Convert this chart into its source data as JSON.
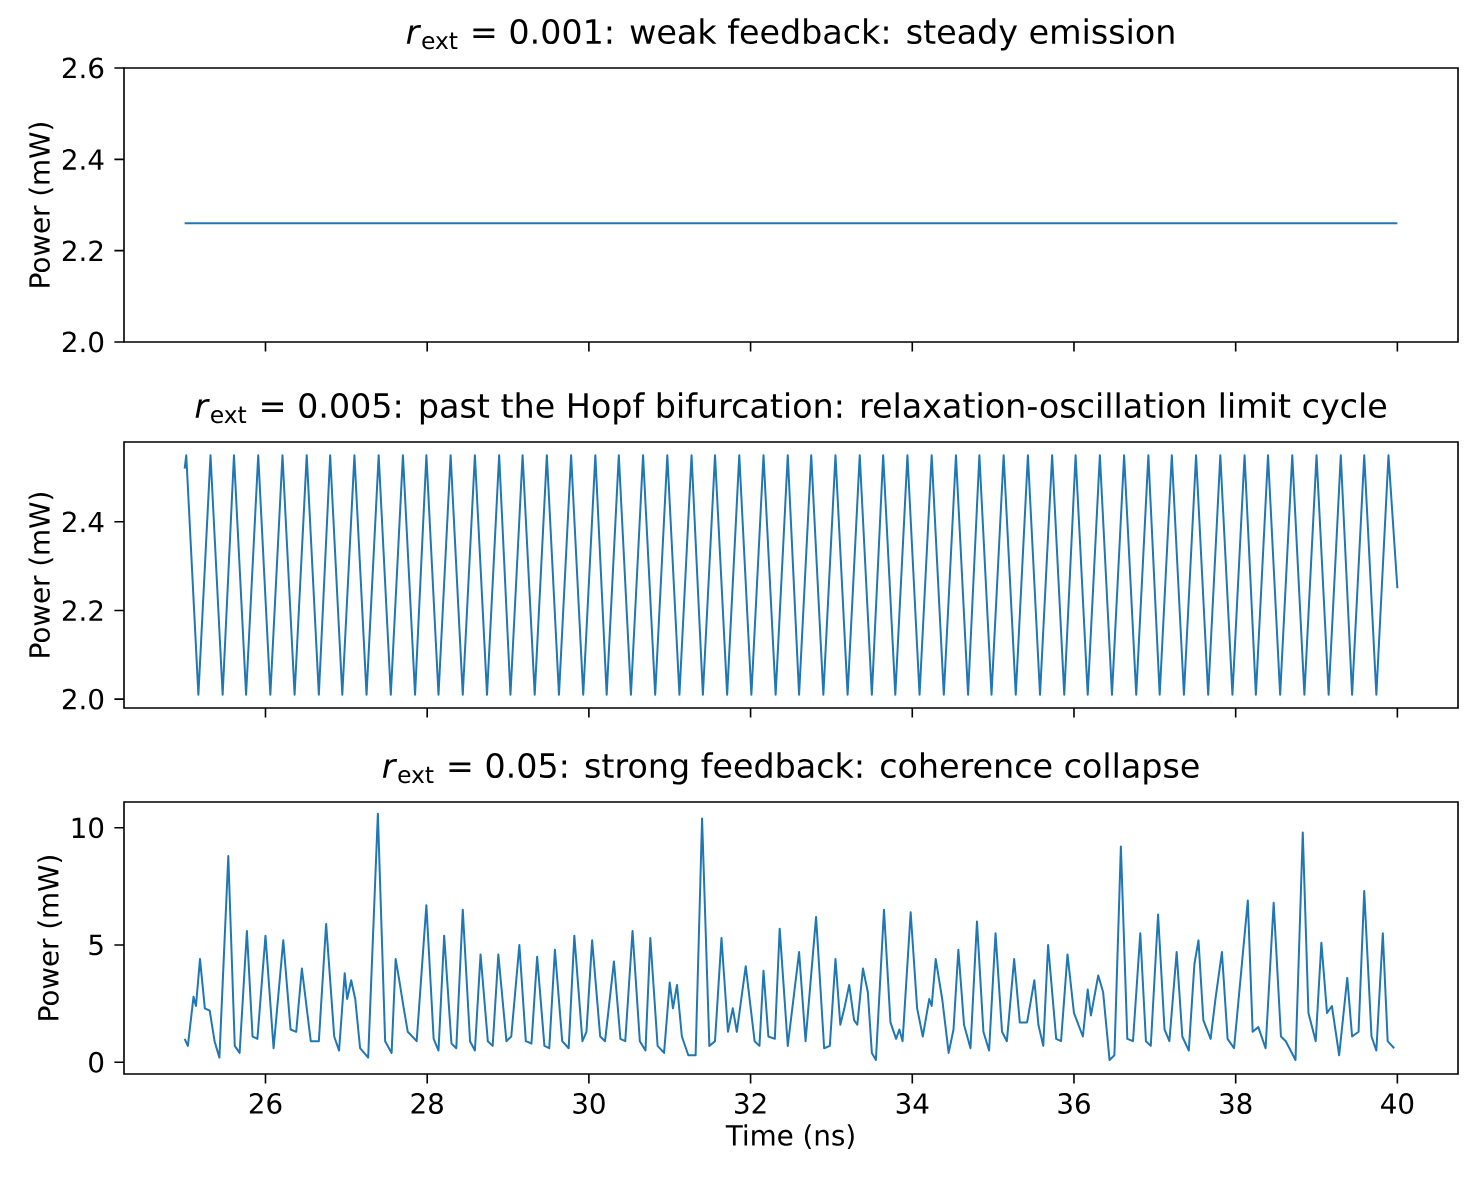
{
  "chart_data": [
    {
      "type": "line",
      "title": "*r*$_{ext}$ = 0.001: weak feedback: steady emission",
      "ylabel": "Power (mW)",
      "tick_labels": "y",
      "xlim": [
        24.25,
        40.75
      ],
      "xticks": [
        26,
        28,
        30,
        32,
        34,
        36,
        38,
        40
      ],
      "ylim": [
        2.0,
        2.6
      ],
      "yticks": [
        {
          "value": 2.0,
          "label": "2.0"
        },
        2.2,
        2.4,
        2.6
      ],
      "series": [
        {
          "color": "#1f77b4",
          "x": [
            25.0,
            40.0
          ],
          "values": [
            2.26,
            2.26
          ]
        }
      ]
    },
    {
      "type": "line",
      "title": "*r*$_{ext}$ = 0.005: past the Hopf bifurcation: relaxation-oscillation limit cycle",
      "ylabel": "Power (mW)",
      "tick_labels": "y",
      "xlim": [
        24.25,
        40.75
      ],
      "xticks": [
        26,
        28,
        30,
        32,
        34,
        36,
        38,
        40
      ],
      "ylim": [
        1.98,
        2.58
      ],
      "yticks": [
        {
          "value": 2.0,
          "label": "2.0"
        },
        2.2,
        2.4
      ],
      "series": [
        {
          "color": "#1f77b4",
          "x": [
            25.0,
            25.02,
            25.17,
            25.32,
            25.47,
            25.61,
            25.76,
            25.91,
            26.06,
            26.21,
            26.36,
            26.51,
            26.66,
            26.8,
            26.95,
            27.1,
            27.25,
            27.4,
            27.55,
            27.7,
            27.85,
            27.99,
            28.14,
            28.29,
            28.44,
            28.59,
            28.74,
            28.89,
            29.03,
            29.18,
            29.33,
            29.48,
            29.63,
            29.78,
            29.93,
            30.08,
            30.22,
            30.37,
            30.52,
            30.67,
            30.82,
            30.97,
            31.12,
            31.27,
            31.41,
            31.56,
            31.71,
            31.86,
            32.01,
            32.16,
            32.31,
            32.46,
            32.6,
            32.75,
            32.9,
            33.05,
            33.2,
            33.35,
            33.5,
            33.64,
            33.79,
            33.94,
            34.09,
            34.24,
            34.39,
            34.54,
            34.69,
            34.83,
            34.98,
            35.13,
            35.28,
            35.43,
            35.58,
            35.73,
            35.88,
            36.02,
            36.17,
            36.32,
            36.47,
            36.62,
            36.77,
            36.92,
            37.06,
            37.21,
            37.36,
            37.51,
            37.66,
            37.81,
            37.96,
            38.11,
            38.25,
            38.4,
            38.55,
            38.7,
            38.85,
            39.0,
            39.15,
            39.3,
            39.44,
            39.59,
            39.74,
            39.89,
            40.0
          ],
          "values": [
            2.52,
            2.55,
            2.01,
            2.55,
            2.01,
            2.55,
            2.01,
            2.55,
            2.01,
            2.55,
            2.01,
            2.55,
            2.01,
            2.55,
            2.01,
            2.55,
            2.01,
            2.55,
            2.01,
            2.55,
            2.01,
            2.55,
            2.01,
            2.55,
            2.01,
            2.55,
            2.01,
            2.55,
            2.01,
            2.55,
            2.01,
            2.55,
            2.01,
            2.55,
            2.01,
            2.55,
            2.01,
            2.55,
            2.01,
            2.55,
            2.01,
            2.55,
            2.01,
            2.55,
            2.01,
            2.55,
            2.01,
            2.55,
            2.01,
            2.55,
            2.01,
            2.55,
            2.01,
            2.55,
            2.01,
            2.55,
            2.01,
            2.55,
            2.01,
            2.55,
            2.01,
            2.55,
            2.01,
            2.55,
            2.01,
            2.55,
            2.01,
            2.55,
            2.01,
            2.55,
            2.01,
            2.55,
            2.01,
            2.55,
            2.01,
            2.55,
            2.01,
            2.55,
            2.01,
            2.55,
            2.01,
            2.55,
            2.01,
            2.55,
            2.01,
            2.55,
            2.01,
            2.55,
            2.01,
            2.55,
            2.01,
            2.55,
            2.01,
            2.55,
            2.01,
            2.55,
            2.01,
            2.55,
            2.01,
            2.55,
            2.01,
            2.55,
            2.25
          ]
        }
      ]
    },
    {
      "type": "line",
      "title": "*r*$_{ext}$ = 0.05: strong feedback: coherence collapse",
      "xlabel": "Time (ns)",
      "ylabel": "Power (mW)",
      "xlim": [
        24.25,
        40.75
      ],
      "xticks": [
        26,
        28,
        30,
        32,
        34,
        36,
        38,
        40
      ],
      "ylim": [
        -0.5,
        11.1
      ],
      "yticks": [
        0,
        5,
        10
      ],
      "series": [
        {
          "color": "#1f77b4",
          "x": [
            25.0,
            25.04,
            25.11,
            25.14,
            25.19,
            25.25,
            25.31,
            25.37,
            25.43,
            25.54,
            25.62,
            25.68,
            25.77,
            25.84,
            25.9,
            26.0,
            26.1,
            26.22,
            26.31,
            26.38,
            26.45,
            26.56,
            26.66,
            26.75,
            26.85,
            26.91,
            26.98,
            27.01,
            27.06,
            27.11,
            27.17,
            27.27,
            27.39,
            27.48,
            27.56,
            27.61,
            27.65,
            27.71,
            27.76,
            27.87,
            27.99,
            28.08,
            28.14,
            28.21,
            28.3,
            28.36,
            28.44,
            28.53,
            28.59,
            28.66,
            28.75,
            28.81,
            28.88,
            28.98,
            29.04,
            29.14,
            29.22,
            29.29,
            29.36,
            29.45,
            29.51,
            29.58,
            29.67,
            29.75,
            29.82,
            29.92,
            29.97,
            30.04,
            30.14,
            30.2,
            30.31,
            30.39,
            30.45,
            30.54,
            30.63,
            30.7,
            30.76,
            30.85,
            30.93,
            31.0,
            31.04,
            31.09,
            31.15,
            31.23,
            31.32,
            31.4,
            31.49,
            31.56,
            31.64,
            31.72,
            31.78,
            31.83,
            31.94,
            32.05,
            32.11,
            32.16,
            32.22,
            32.3,
            32.36,
            32.46,
            32.6,
            32.68,
            32.81,
            32.91,
            32.98,
            33.05,
            33.11,
            33.16,
            33.22,
            33.28,
            33.32,
            33.39,
            33.45,
            33.5,
            33.55,
            33.65,
            33.73,
            33.8,
            33.84,
            33.88,
            33.98,
            34.06,
            34.13,
            34.21,
            34.24,
            34.29,
            34.37,
            34.45,
            34.51,
            34.57,
            34.64,
            34.72,
            34.8,
            34.88,
            34.95,
            35.03,
            35.11,
            35.17,
            35.26,
            35.33,
            35.42,
            35.51,
            35.56,
            35.62,
            35.68,
            35.78,
            35.84,
            35.92,
            36.0,
            36.11,
            36.17,
            36.21,
            36.3,
            36.36,
            36.44,
            36.5,
            36.58,
            36.66,
            36.73,
            36.82,
            36.89,
            36.95,
            37.04,
            37.12,
            37.18,
            37.27,
            37.34,
            37.42,
            37.49,
            37.54,
            37.6,
            37.69,
            37.75,
            37.83,
            37.9,
            37.98,
            38.15,
            38.21,
            38.28,
            38.37,
            38.47,
            38.56,
            38.62,
            38.74,
            38.83,
            38.9,
            38.99,
            39.06,
            39.13,
            39.19,
            39.28,
            39.38,
            39.44,
            39.52,
            39.59,
            39.68,
            39.74,
            39.82,
            39.88,
            39.96
          ],
          "values": [
            1.0,
            0.7,
            2.8,
            2.4,
            4.4,
            2.3,
            2.2,
            0.9,
            0.2,
            8.8,
            0.7,
            0.4,
            5.6,
            1.1,
            1.0,
            5.4,
            0.6,
            5.2,
            1.4,
            1.3,
            4.0,
            0.9,
            0.9,
            5.9,
            1.1,
            0.5,
            3.8,
            2.7,
            3.5,
            2.7,
            0.6,
            0.2,
            10.6,
            0.9,
            0.4,
            4.4,
            3.6,
            2.3,
            1.3,
            0.9,
            6.7,
            1.0,
            0.5,
            5.4,
            0.8,
            0.6,
            6.5,
            0.9,
            0.5,
            4.6,
            0.9,
            0.7,
            4.6,
            0.9,
            1.1,
            5.0,
            0.9,
            0.8,
            4.5,
            0.7,
            0.6,
            4.8,
            0.9,
            0.6,
            5.4,
            0.9,
            1.3,
            5.2,
            1.1,
            0.9,
            4.3,
            1.0,
            0.9,
            5.6,
            0.9,
            0.5,
            5.3,
            0.7,
            0.4,
            3.4,
            2.3,
            3.3,
            1.1,
            0.3,
            0.3,
            10.4,
            0.7,
            0.9,
            5.3,
            1.3,
            2.3,
            1.3,
            4.1,
            0.9,
            0.7,
            3.9,
            1.1,
            1.0,
            5.7,
            0.7,
            4.7,
            0.9,
            6.2,
            0.6,
            0.7,
            4.4,
            1.6,
            2.3,
            3.3,
            1.8,
            1.6,
            4.0,
            3.0,
            0.4,
            0.1,
            6.5,
            1.7,
            1.0,
            1.4,
            0.9,
            6.4,
            2.3,
            1.1,
            2.7,
            2.4,
            4.4,
            2.7,
            0.4,
            1.4,
            4.8,
            1.6,
            0.6,
            6.0,
            1.3,
            0.5,
            5.5,
            1.3,
            0.9,
            4.4,
            1.7,
            1.7,
            3.5,
            1.6,
            0.7,
            5.0,
            1.0,
            0.9,
            4.6,
            2.1,
            1.1,
            3.1,
            2.0,
            3.7,
            3.0,
            0.1,
            0.3,
            9.2,
            1.0,
            0.9,
            5.5,
            0.9,
            0.7,
            6.3,
            1.4,
            0.9,
            4.7,
            1.1,
            0.5,
            4.2,
            5.2,
            1.8,
            1.0,
            2.7,
            4.7,
            1.0,
            0.6,
            6.9,
            1.3,
            1.5,
            0.6,
            6.8,
            1.1,
            0.9,
            0.1,
            9.8,
            2.1,
            0.9,
            5.1,
            2.1,
            2.4,
            0.3,
            3.6,
            1.1,
            1.3,
            7.3,
            1.1,
            0.5,
            5.5,
            0.9,
            0.6
          ]
        }
      ]
    }
  ]
}
